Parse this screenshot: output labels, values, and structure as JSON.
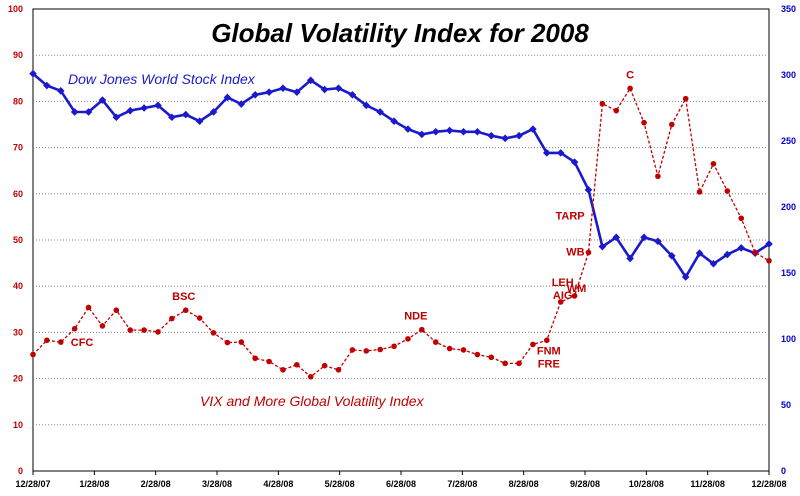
{
  "chart_data": {
    "type": "line",
    "title": "Global Volatility Index for 2008",
    "x_ticks": [
      "12/28/07",
      "1/28/08",
      "2/28/08",
      "3/28/08",
      "4/28/08",
      "5/28/08",
      "6/28/08",
      "7/28/08",
      "8/28/08",
      "9/28/08",
      "10/28/08",
      "11/28/08",
      "12/28/08"
    ],
    "x_start": "12/28/07",
    "x_end": "12/28/08",
    "left_axis": {
      "ylim": [
        0,
        100
      ],
      "ticks": [
        0,
        10,
        20,
        30,
        40,
        50,
        60,
        70,
        80,
        90,
        100
      ],
      "color": "#c00000"
    },
    "right_axis": {
      "ylim": [
        0,
        350
      ],
      "ticks": [
        0,
        50,
        100,
        150,
        200,
        250,
        300,
        350
      ],
      "color": "#0000cc"
    },
    "grid": true,
    "series": [
      {
        "name": "Dow Jones World Stock Index",
        "axis": "right",
        "color": "#1a1acc",
        "style": "solid",
        "values": [
          301,
          292,
          288,
          272,
          272,
          281,
          268,
          273,
          275,
          277,
          268,
          270,
          265,
          272,
          283,
          278,
          285,
          287,
          290,
          287,
          296,
          289,
          290,
          285,
          277,
          272,
          265,
          259,
          255,
          257,
          258,
          257,
          257,
          254,
          252,
          254,
          259,
          241,
          241,
          234,
          213,
          170,
          177,
          161,
          177,
          174,
          163,
          147,
          165,
          157,
          164,
          169,
          165,
          172
        ]
      },
      {
        "name": "VIX and More Global Volatility Index",
        "axis": "left",
        "color": "#c00000",
        "style": "dashed",
        "values": [
          25.2,
          28.3,
          27.9,
          30.8,
          35.4,
          31.4,
          34.8,
          30.5,
          30.5,
          30.1,
          33.0,
          34.8,
          33.1,
          29.9,
          27.8,
          27.9,
          24.4,
          23.7,
          21.9,
          23.0,
          20.4,
          22.8,
          21.9,
          26.2,
          26.0,
          26.3,
          27.0,
          28.6,
          30.6,
          27.9,
          26.5,
          26.2,
          25.2,
          24.6,
          23.3,
          23.3,
          27.4,
          28.3,
          36.6,
          37.9,
          47.3,
          79.5,
          78.0,
          82.8,
          75.4,
          63.8,
          75.0,
          80.6,
          60.4,
          66.5,
          60.6,
          54.7,
          47.3,
          45.5
        ]
      }
    ],
    "annotations": [
      {
        "text": "CFC",
        "series": 1,
        "index": 2
      },
      {
        "text": "BSC",
        "series": 1,
        "index": 11
      },
      {
        "text": "NDE",
        "series": 1,
        "index": 28
      },
      {
        "text": "FNM",
        "series": 1,
        "index": 37
      },
      {
        "text": "FRE",
        "series": 1,
        "index": 37
      },
      {
        "text": "LEH",
        "series": 1,
        "index": 38
      },
      {
        "text": "AIG",
        "series": 1,
        "index": 38
      },
      {
        "text": "WM",
        "series": 1,
        "index": 39
      },
      {
        "text": "WB",
        "series": 1,
        "index": 40
      },
      {
        "text": "TARP",
        "series": 1,
        "index": 40,
        "color": "#000000"
      },
      {
        "text": "C",
        "series": 1,
        "index": 43
      }
    ]
  }
}
